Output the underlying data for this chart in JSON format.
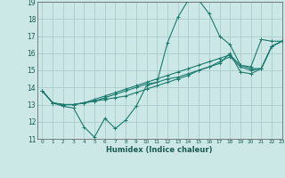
{
  "xlabel": "Humidex (Indice chaleur)",
  "xlim": [
    -0.5,
    23
  ],
  "ylim": [
    11,
    19
  ],
  "xticks": [
    0,
    1,
    2,
    3,
    4,
    5,
    6,
    7,
    8,
    9,
    10,
    11,
    12,
    13,
    14,
    15,
    16,
    17,
    18,
    19,
    20,
    21,
    22,
    23
  ],
  "yticks": [
    11,
    12,
    13,
    14,
    15,
    16,
    17,
    18,
    19
  ],
  "background_color": "#cce8e6",
  "grid_color": "#aaccca",
  "line_color": "#1a7a6e",
  "series": [
    [
      13.8,
      13.1,
      12.9,
      12.8,
      11.7,
      11.1,
      12.2,
      11.6,
      12.1,
      12.9,
      14.1,
      14.3,
      16.6,
      18.1,
      19.1,
      19.1,
      18.3,
      17.0,
      16.5,
      15.3,
      15.2,
      16.8,
      16.7,
      16.7
    ],
    [
      13.8,
      13.1,
      13.0,
      13.0,
      13.1,
      13.2,
      13.3,
      13.4,
      13.5,
      13.7,
      13.9,
      14.1,
      14.3,
      14.5,
      14.7,
      15.0,
      15.2,
      15.5,
      15.8,
      15.2,
      15.0,
      15.1,
      16.4,
      16.7
    ],
    [
      13.8,
      13.1,
      13.0,
      13.0,
      13.1,
      13.3,
      13.5,
      13.7,
      13.9,
      14.1,
      14.3,
      14.5,
      14.7,
      14.9,
      15.1,
      15.3,
      15.5,
      15.7,
      15.9,
      15.3,
      15.1,
      15.1,
      16.4,
      16.7
    ],
    [
      13.8,
      13.1,
      13.0,
      13.0,
      13.1,
      13.2,
      13.4,
      13.6,
      13.8,
      14.0,
      14.2,
      14.3,
      14.5,
      14.6,
      14.8,
      15.0,
      15.2,
      15.4,
      16.0,
      14.9,
      14.8,
      15.1,
      16.4,
      16.7
    ]
  ]
}
